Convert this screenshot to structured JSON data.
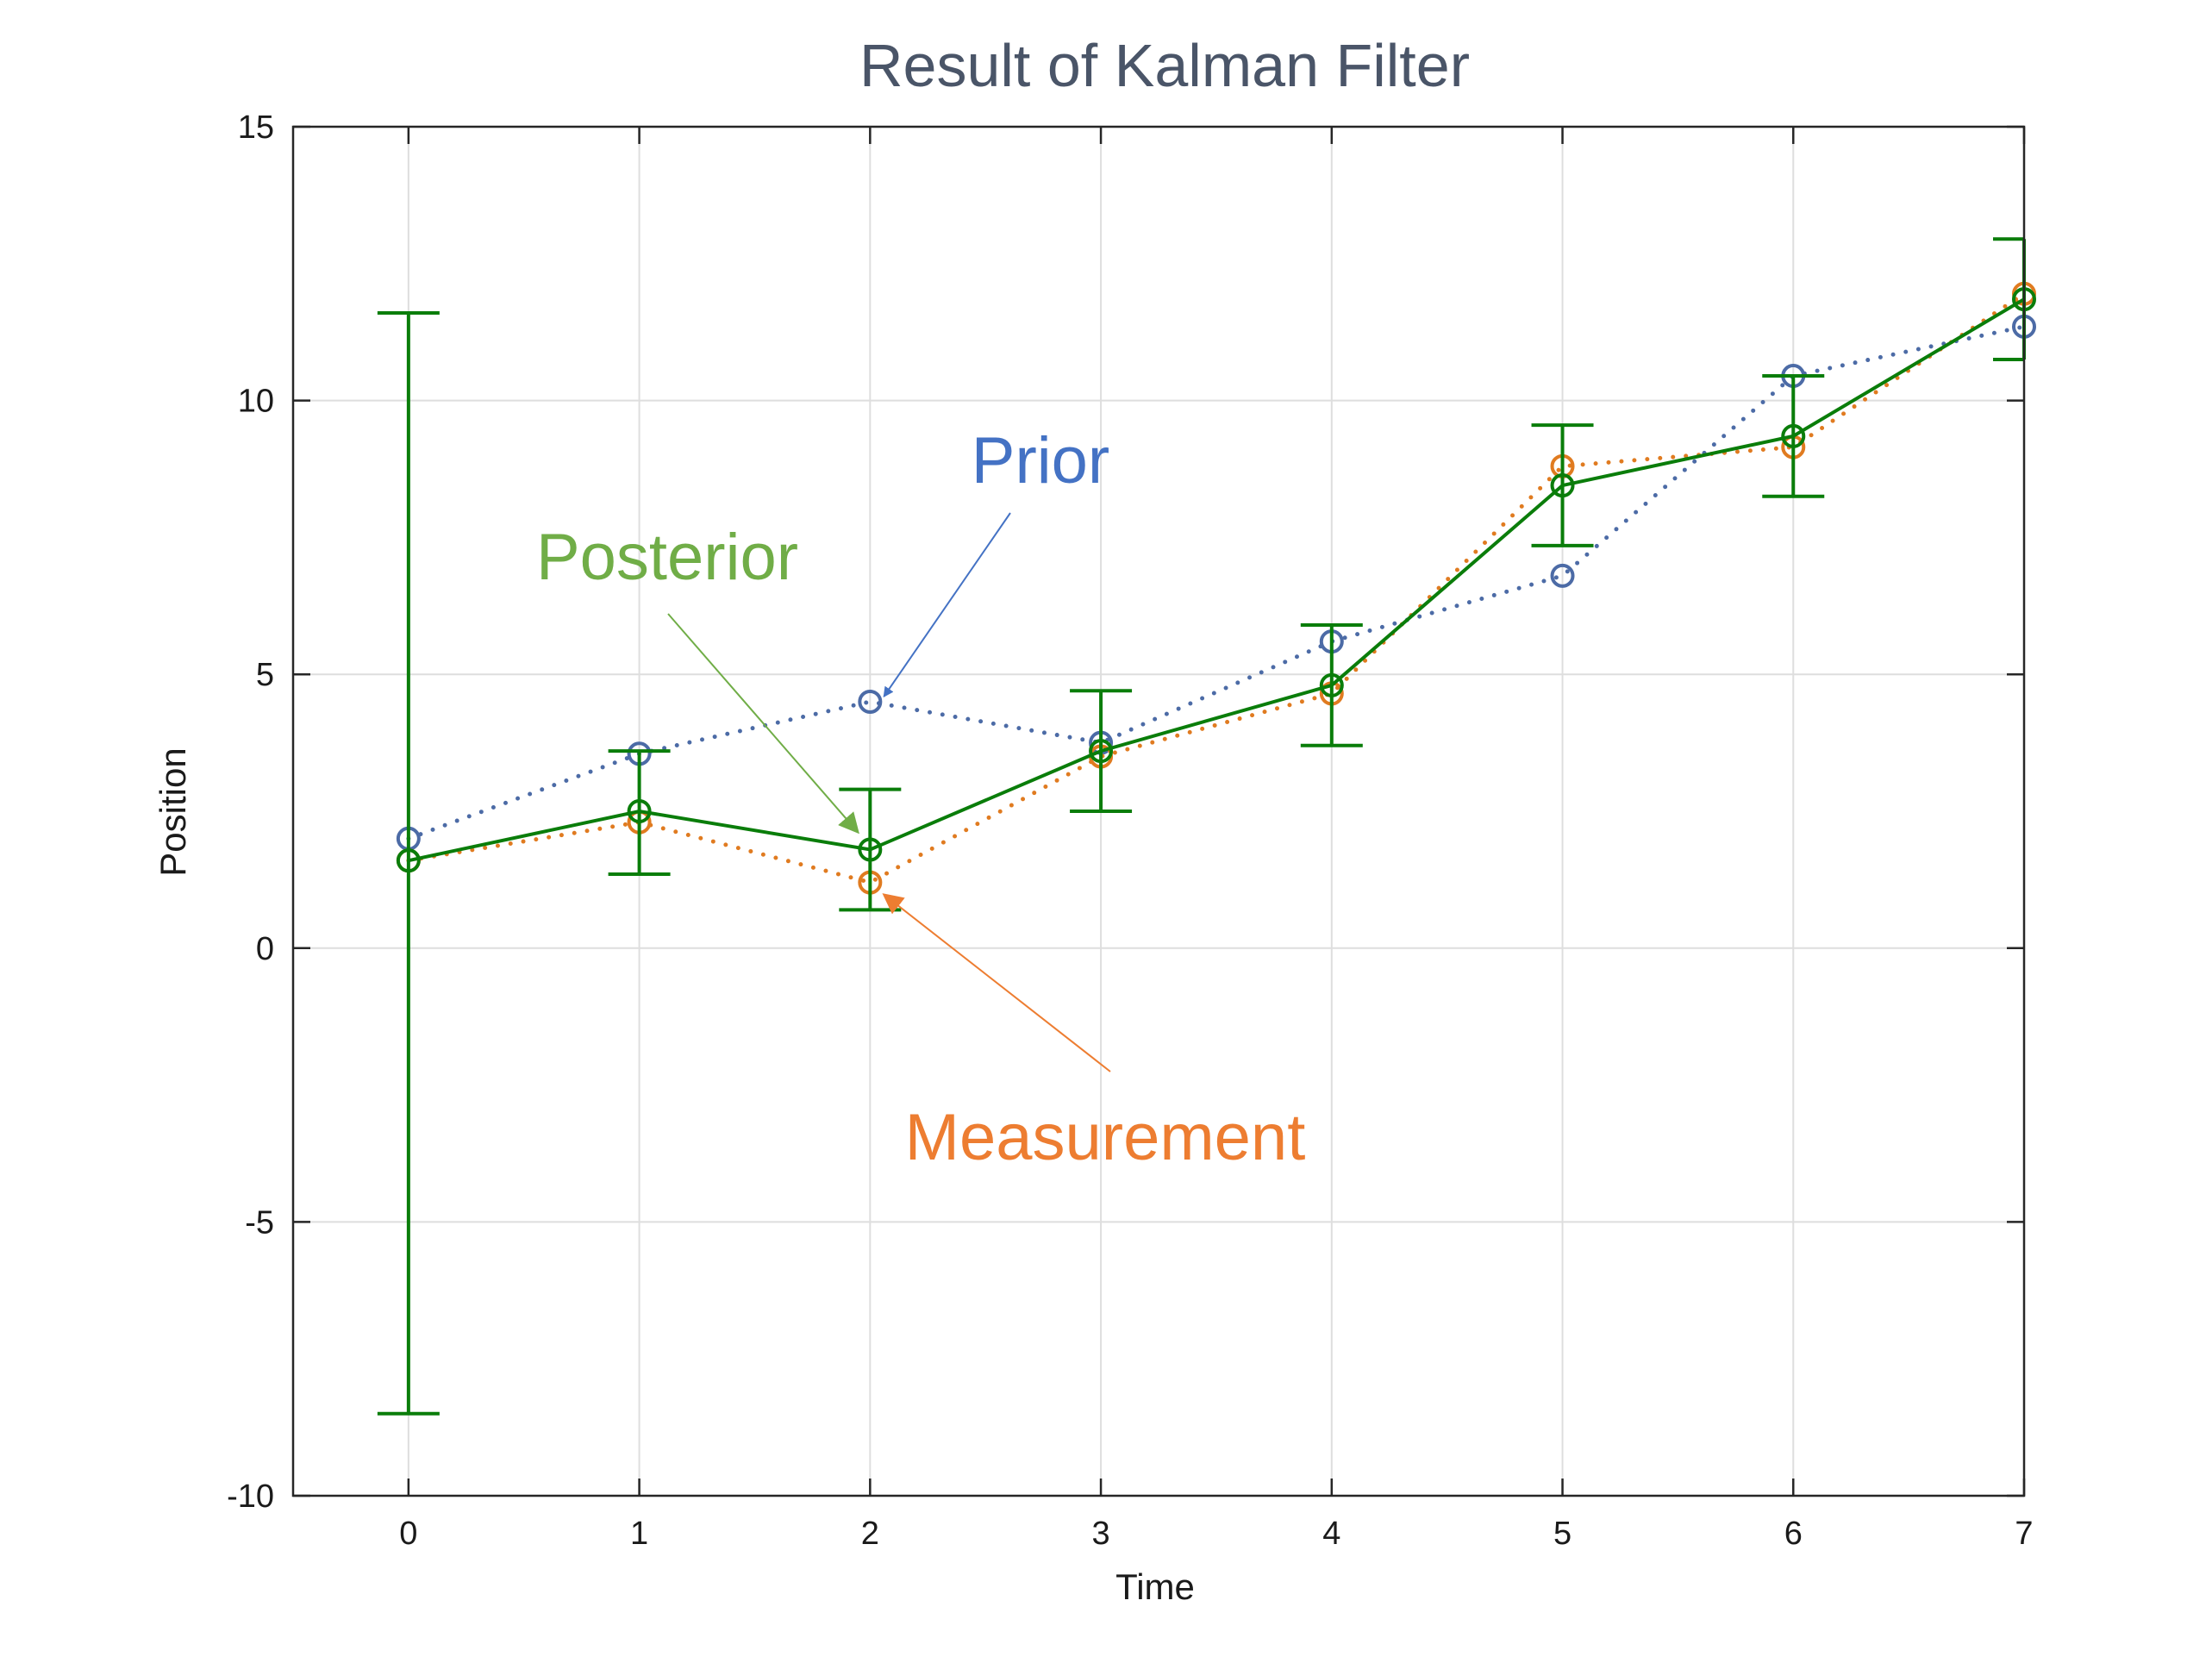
{
  "chart_data": {
    "type": "line",
    "title": "Result of Kalman Filter",
    "xlabel": "Time",
    "ylabel": "Position",
    "xlim": [
      -0.5,
      7
    ],
    "ylim": [
      -10,
      15
    ],
    "x_ticks": [
      0,
      1,
      2,
      3,
      4,
      5,
      6,
      7
    ],
    "y_ticks": [
      -10,
      -5,
      0,
      5,
      10,
      15
    ],
    "grid": true,
    "x": [
      0,
      1,
      2,
      3,
      4,
      5,
      6,
      7
    ],
    "series": [
      {
        "name": "Prior",
        "style": "dotted",
        "marker": "circle",
        "color": "#4c6ba6",
        "values": [
          2.0,
          3.55,
          4.5,
          3.75,
          5.6,
          6.8,
          10.45,
          11.35
        ]
      },
      {
        "name": "Measurement",
        "style": "dotted",
        "marker": "circle",
        "color": "#e07b20",
        "values": [
          1.6,
          2.3,
          1.2,
          3.5,
          4.65,
          8.8,
          9.15,
          11.95
        ]
      },
      {
        "name": "Posterior",
        "style": "solid",
        "marker": "circle",
        "color": "#0a7d0a",
        "values": [
          1.6,
          2.5,
          1.8,
          3.6,
          4.8,
          8.45,
          9.35,
          11.85
        ],
        "error_low": [
          -8.5,
          1.35,
          0.7,
          2.5,
          3.7,
          7.35,
          8.25,
          10.75
        ],
        "error_high": [
          11.6,
          3.6,
          2.9,
          4.7,
          5.9,
          9.55,
          10.45,
          12.95
        ]
      }
    ],
    "annotations": [
      {
        "text": "Prior",
        "color": "#4472c4",
        "target": [
          2,
          4.5
        ]
      },
      {
        "text": "Posterior",
        "color": "#70ad47",
        "target": [
          2,
          1.8
        ]
      },
      {
        "text": "Measurement",
        "color": "#ed7d31",
        "target": [
          2,
          1.2
        ]
      }
    ]
  }
}
